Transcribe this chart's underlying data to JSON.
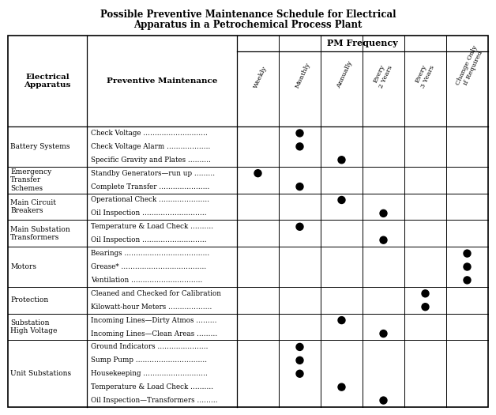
{
  "title_line1": "Possible Preventive Maintenance Schedule for Electrical",
  "title_line2": "Apparatus in a Petrochemical Process Plant",
  "col_headers": [
    "Weekly",
    "Monthly",
    "Annually",
    "Every\n2 Years",
    "Every\n3 Years",
    "Change Only\nif Required"
  ],
  "col_header_label": "PM Frequency",
  "col1_header": "Electrical\nApparatus",
  "col2_header": "Preventive Maintenance",
  "rows": [
    {
      "apparatus": "Battery Systems",
      "maintenance": [
        "Check Voltage ……………………….",
        "Check Voltage Alarm ……………….",
        "Specific Gravity and Plates ………."
      ],
      "dots": [
        [
          0,
          1,
          0,
          0,
          0,
          0
        ],
        [
          0,
          1,
          0,
          0,
          0,
          0
        ],
        [
          0,
          0,
          1,
          0,
          0,
          0
        ]
      ]
    },
    {
      "apparatus": "Emergency\nTransfer\nSchemes",
      "maintenance": [
        "Standby Generators—run up ………",
        "Complete Transfer …………………."
      ],
      "dots": [
        [
          1,
          0,
          0,
          0,
          0,
          0
        ],
        [
          0,
          1,
          0,
          0,
          0,
          0
        ]
      ]
    },
    {
      "apparatus": "Main Circuit\nBreakers",
      "maintenance": [
        "Operational Check ………………….",
        "Oil Inspection ………………………."
      ],
      "dots": [
        [
          0,
          0,
          1,
          0,
          0,
          0
        ],
        [
          0,
          0,
          0,
          1,
          0,
          0
        ]
      ]
    },
    {
      "apparatus": "Main Substation\nTransformers",
      "maintenance": [
        "Temperature & Load Check ……….",
        "Oil Inspection ………………………."
      ],
      "dots": [
        [
          0,
          1,
          0,
          0,
          0,
          0
        ],
        [
          0,
          0,
          0,
          1,
          0,
          0
        ]
      ]
    },
    {
      "apparatus": "Motors",
      "maintenance": [
        "Bearings ……………………………….",
        "Grease* ……………………………….",
        "Ventilation …………………………."
      ],
      "dots": [
        [
          0,
          0,
          0,
          0,
          0,
          1
        ],
        [
          0,
          0,
          0,
          0,
          0,
          1
        ],
        [
          0,
          0,
          0,
          0,
          0,
          1
        ]
      ]
    },
    {
      "apparatus": "Protection",
      "maintenance": [
        "Cleaned and Checked for Calibration",
        "Kilowatt-hour Meters ………………."
      ],
      "dots": [
        [
          0,
          0,
          0,
          0,
          1,
          0
        ],
        [
          0,
          0,
          0,
          0,
          1,
          0
        ]
      ]
    },
    {
      "apparatus": "Substation\nHigh Voltage",
      "maintenance": [
        "Incoming Lines—Dirty Atmos ………",
        "Incoming Lines—Clean Areas ………"
      ],
      "dots": [
        [
          0,
          0,
          1,
          0,
          0,
          0
        ],
        [
          0,
          0,
          0,
          1,
          0,
          0
        ]
      ]
    },
    {
      "apparatus": "Unit Substations",
      "maintenance": [
        "Ground Indicators ………………….",
        "Sump Pump ………………………….",
        "Housekeeping ……………………….",
        "Temperature & Load Check ……….",
        "Oil Inspection—Transformers ………"
      ],
      "dots": [
        [
          0,
          1,
          0,
          0,
          0,
          0
        ],
        [
          0,
          1,
          0,
          0,
          0,
          0
        ],
        [
          0,
          1,
          0,
          0,
          0,
          0
        ],
        [
          0,
          0,
          1,
          0,
          0,
          0
        ],
        [
          0,
          0,
          0,
          1,
          0,
          0
        ]
      ]
    }
  ],
  "background_color": "#ffffff",
  "text_color": "#000000",
  "line_color": "#000000",
  "figw": 6.28,
  "figh": 5.25,
  "dpi": 100
}
